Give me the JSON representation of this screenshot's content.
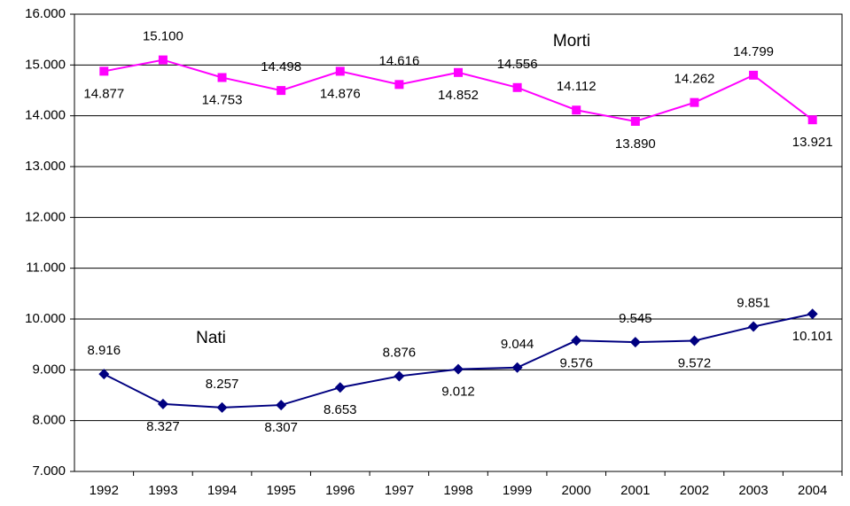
{
  "chart_data": {
    "type": "line",
    "categories": [
      "1992",
      "1993",
      "1994",
      "1995",
      "1996",
      "1997",
      "1998",
      "1999",
      "2000",
      "2001",
      "2002",
      "2003",
      "2004"
    ],
    "series": [
      {
        "name": "Morti",
        "color": "#ff00ff",
        "marker": "square",
        "values": [
          14877,
          15100,
          14753,
          14498,
          14876,
          14616,
          14852,
          14556,
          14112,
          13890,
          14262,
          14799,
          13921
        ],
        "value_labels": [
          "14.877",
          "15.100",
          "14.753",
          "14.498",
          "14.876",
          "14.616",
          "14.852",
          "14.556",
          "14.112",
          "13.890",
          "14.262",
          "14.799",
          "13.921"
        ]
      },
      {
        "name": "Nati",
        "color": "#000080",
        "marker": "diamond",
        "values": [
          8916,
          8327,
          8257,
          8307,
          8653,
          8876,
          9012,
          9044,
          9576,
          9545,
          9572,
          9851,
          10101
        ],
        "value_labels": [
          "8.916",
          "8.327",
          "8.257",
          "8.307",
          "8.653",
          "8.876",
          "9.012",
          "9.044",
          "9.576",
          "9.545",
          "9.572",
          "9.851",
          "10.101"
        ]
      }
    ],
    "ylim": [
      7000,
      16000
    ],
    "yticks": [
      {
        "value": 7000,
        "label": "7.000"
      },
      {
        "value": 8000,
        "label": "8.000"
      },
      {
        "value": 9000,
        "label": "9.000"
      },
      {
        "value": 10000,
        "label": "10.000"
      },
      {
        "value": 11000,
        "label": "11.000"
      },
      {
        "value": 12000,
        "label": "12.000"
      },
      {
        "value": 13000,
        "label": "13.000"
      },
      {
        "value": 14000,
        "label": "14.000"
      },
      {
        "value": 15000,
        "label": "15.000"
      },
      {
        "value": 16000,
        "label": "16.000"
      }
    ],
    "grid": true
  }
}
